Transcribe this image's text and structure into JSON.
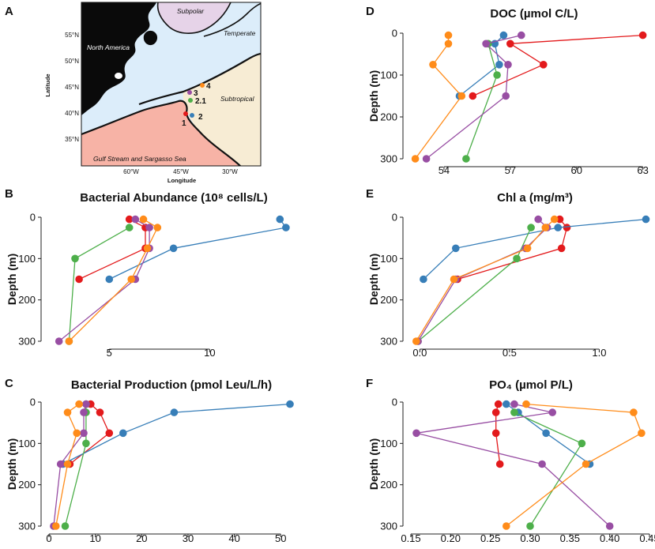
{
  "colors": {
    "1": "#e31a1c",
    "2": "#377eb8",
    "2.1": "#4daf4a",
    "3": "#984ea3",
    "4": "#ff8c1a"
  },
  "map": {
    "letter": "A",
    "xlabel": "Longitude",
    "ylabel": "Latitude",
    "lat_ticks": [
      "55°N",
      "50°N",
      "45°N",
      "40°N",
      "35°N"
    ],
    "lon_ticks": [
      "60°W",
      "45°W",
      "30°W"
    ],
    "regions": [
      "North America",
      "Subpolar",
      "Temperate",
      "Subtropical",
      "Gulf Stream and Sargasso Sea"
    ],
    "stations": [
      "1",
      "2",
      "2.1",
      "3",
      "4"
    ]
  },
  "chart_data": [
    {
      "id": "B",
      "letter": "B",
      "type": "line",
      "title": "Bacterial Abundance (10⁸ cells/L)",
      "ylabel": "Depth (m)",
      "xlim": [
        2,
        14
      ],
      "ylim": [
        0,
        300
      ],
      "xticks": [
        5,
        10
      ],
      "xtick_labels": [
        "5",
        "10"
      ],
      "yticks": [
        0,
        100,
        200,
        300
      ],
      "ytick_labels": [
        "0",
        "100",
        "200",
        "300"
      ],
      "series": [
        {
          "name": "1",
          "depth": [
            5,
            25,
            75,
            150
          ],
          "values": [
            6.0,
            6.8,
            6.8,
            3.5
          ]
        },
        {
          "name": "2",
          "depth": [
            5,
            25,
            75,
            150
          ],
          "values": [
            13.5,
            13.8,
            8.2,
            5.0
          ]
        },
        {
          "name": "2.1",
          "depth": [
            25,
            100,
            300
          ],
          "values": [
            6.0,
            3.3,
            3.0
          ]
        },
        {
          "name": "3",
          "depth": [
            5,
            25,
            75,
            150,
            300
          ],
          "values": [
            6.3,
            7.0,
            7.0,
            6.3,
            2.5
          ]
        },
        {
          "name": "4",
          "depth": [
            5,
            25,
            75,
            150,
            300
          ],
          "values": [
            6.7,
            7.4,
            6.9,
            6.1,
            3.0
          ]
        }
      ]
    },
    {
      "id": "C",
      "letter": "C",
      "type": "line",
      "title": "Bacterial Production (pmol Leu/L/h)",
      "ylabel": "Depth (m)",
      "xlim": [
        0,
        52
      ],
      "ylim": [
        0,
        300
      ],
      "xticks": [
        0,
        10,
        20,
        30,
        40,
        50
      ],
      "xtick_labels": [
        "0",
        "10",
        "20",
        "30",
        "40",
        "50"
      ],
      "yticks": [
        0,
        100,
        200,
        300
      ],
      "ytick_labels": [
        "0",
        "100",
        "200",
        "300"
      ],
      "series": [
        {
          "name": "1",
          "depth": [
            5,
            25,
            75,
            150
          ],
          "values": [
            9.0,
            11.0,
            13.0,
            4.5
          ]
        },
        {
          "name": "2",
          "depth": [
            5,
            25,
            75,
            150
          ],
          "values": [
            52,
            27,
            16,
            3.0
          ]
        },
        {
          "name": "2.1",
          "depth": [
            5,
            25,
            100,
            300
          ],
          "values": [
            8.0,
            8.0,
            8.0,
            3.5
          ]
        },
        {
          "name": "3",
          "depth": [
            5,
            25,
            75,
            150,
            300
          ],
          "values": [
            8.0,
            7.5,
            7.5,
            2.5,
            1.0
          ]
        },
        {
          "name": "4",
          "depth": [
            5,
            25,
            75,
            150,
            300
          ],
          "values": [
            6.5,
            4.0,
            6.0,
            4.0,
            1.5
          ]
        }
      ]
    },
    {
      "id": "D",
      "letter": "D",
      "type": "line",
      "title": "DOC (µmol C/L)",
      "ylabel": "Depth (m)",
      "xlim": [
        52.5,
        63.3
      ],
      "ylim": [
        0,
        300
      ],
      "xticks": [
        54,
        57,
        60,
        63
      ],
      "xtick_labels": [
        "54",
        "57",
        "60",
        "63"
      ],
      "yticks": [
        0,
        100,
        200,
        300
      ],
      "ytick_labels": [
        "0",
        "100",
        "200",
        "300"
      ],
      "series": [
        {
          "name": "1",
          "depth": [
            5,
            25,
            75,
            150
          ],
          "values": [
            63.0,
            57.0,
            58.5,
            55.3
          ]
        },
        {
          "name": "2",
          "depth": [
            5,
            25,
            75,
            150
          ],
          "values": [
            56.7,
            56.3,
            56.5,
            54.7
          ]
        },
        {
          "name": "2.1",
          "depth": [
            25,
            100,
            300
          ],
          "values": [
            56.0,
            56.4,
            55.0
          ]
        },
        {
          "name": "3",
          "depth": [
            5,
            25,
            75,
            150,
            300
          ],
          "values": [
            57.5,
            55.9,
            56.9,
            56.8,
            53.2
          ]
        },
        {
          "name": "4",
          "depth": [
            5,
            25,
            75,
            150,
            300
          ],
          "values": [
            54.2,
            54.2,
            53.5,
            54.8,
            52.7
          ]
        }
      ]
    },
    {
      "id": "E",
      "letter": "E",
      "type": "line",
      "title": "Chl a (mg/m³)",
      "ylabel": "Depth (m)",
      "xlim": [
        -0.05,
        1.28
      ],
      "ylim": [
        0,
        300
      ],
      "xticks": [
        0.0,
        0.5,
        1.0
      ],
      "xtick_labels": [
        "0.0",
        "0.5",
        "1.0"
      ],
      "yticks": [
        0,
        100,
        200,
        300
      ],
      "ytick_labels": [
        "0",
        "100",
        "200",
        "300"
      ],
      "series": [
        {
          "name": "1",
          "depth": [
            5,
            25,
            75,
            150
          ],
          "values": [
            0.78,
            0.82,
            0.79,
            0.21
          ]
        },
        {
          "name": "2",
          "depth": [
            5,
            25,
            75,
            150
          ],
          "values": [
            1.26,
            0.77,
            0.2,
            0.02
          ]
        },
        {
          "name": "2.1",
          "depth": [
            25,
            100,
            300
          ],
          "values": [
            0.62,
            0.54,
            -0.01
          ]
        },
        {
          "name": "3",
          "depth": [
            5,
            25,
            75,
            150,
            300
          ],
          "values": [
            0.66,
            0.71,
            0.59,
            0.2,
            -0.01
          ]
        },
        {
          "name": "4",
          "depth": [
            5,
            25,
            75,
            150,
            300
          ],
          "values": [
            0.75,
            0.7,
            0.6,
            0.19,
            -0.02
          ]
        }
      ]
    },
    {
      "id": "F",
      "letter": "F",
      "type": "line",
      "title": "PO₄ (µmol P/L)",
      "ylabel": "Depth (m)",
      "xlim": [
        0.15,
        0.45
      ],
      "ylim": [
        0,
        300
      ],
      "xticks": [
        0.15,
        0.2,
        0.25,
        0.3,
        0.35,
        0.4,
        0.45
      ],
      "xtick_labels": [
        "0.15",
        "0.20",
        "0.25",
        "0.30",
        "0.35",
        "0.40",
        "0.45"
      ],
      "yticks": [
        0,
        100,
        200,
        300
      ],
      "ytick_labels": [
        "0",
        "100",
        "200",
        "300"
      ],
      "series": [
        {
          "name": "1",
          "depth": [
            5,
            25,
            75,
            150
          ],
          "values": [
            0.26,
            0.257,
            0.257,
            0.262
          ]
        },
        {
          "name": "2",
          "depth": [
            5,
            25,
            75,
            150
          ],
          "values": [
            0.27,
            0.285,
            0.32,
            0.375
          ]
        },
        {
          "name": "2.1",
          "depth": [
            25,
            100,
            300
          ],
          "values": [
            0.28,
            0.365,
            0.3
          ]
        },
        {
          "name": "3",
          "depth": [
            5,
            25,
            75,
            150,
            300
          ],
          "values": [
            0.28,
            0.328,
            0.157,
            0.315,
            0.4
          ]
        },
        {
          "name": "4",
          "depth": [
            5,
            25,
            75,
            150,
            300
          ],
          "values": [
            0.295,
            0.43,
            0.44,
            0.37,
            0.27
          ]
        }
      ]
    }
  ]
}
